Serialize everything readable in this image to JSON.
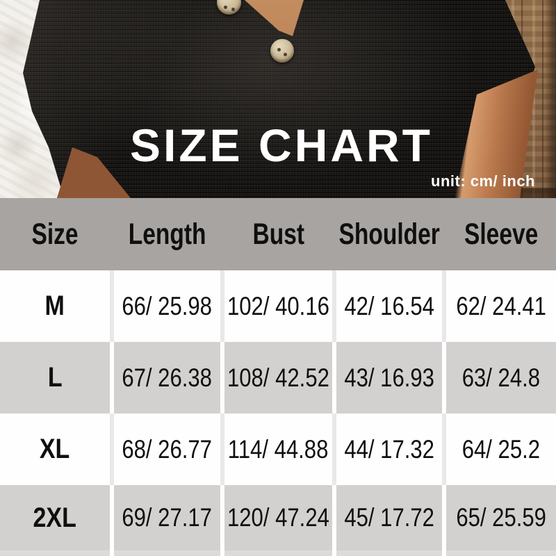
{
  "photo": {
    "title": "SIZE CHART",
    "unit_label": "unit: cm/ inch",
    "subject": "black waffle-knit v-neck top with wooden buttons",
    "accent_colors": {
      "knit": "#181614",
      "wall": "#f3f1ed",
      "wood": "#8a6748",
      "skin": "#bb7a4e",
      "button": "#c9b795",
      "title_text": "#ffffff"
    }
  },
  "table": {
    "headers": [
      "Size",
      "Length",
      "Bust",
      "Shoulder",
      "Sleeve"
    ],
    "rows": [
      {
        "size": "M",
        "length": "66/ 25.98",
        "bust": "102/ 40.16",
        "shoulder": "42/ 16.54",
        "sleeve": "62/ 24.41"
      },
      {
        "size": "L",
        "length": "67/ 26.38",
        "bust": "108/ 42.52",
        "shoulder": "43/ 16.93",
        "sleeve": "63/ 24.8"
      },
      {
        "size": "XL",
        "length": "68/ 26.77",
        "bust": "114/ 44.88",
        "shoulder": "44/ 17.32",
        "sleeve": "64/ 25.2"
      },
      {
        "size": "2XL",
        "length": "69/ 27.17",
        "bust": "120/ 47.24",
        "shoulder": "45/ 17.72",
        "sleeve": "65/ 25.59"
      }
    ],
    "colors": {
      "header_bg": "#a8a4a1",
      "row_bg": "#ffffff",
      "row_alt_bg": "#d2d1d0",
      "text": "#0f0f0f"
    }
  }
}
